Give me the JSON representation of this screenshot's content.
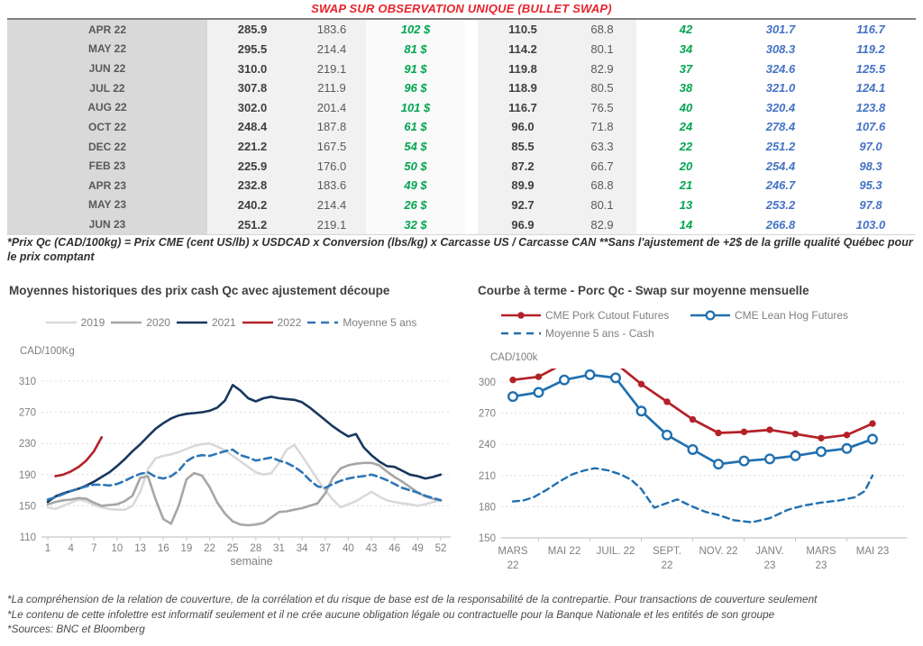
{
  "title": "SWAP SUR OBSERVATION UNIQUE (BULLET SWAP)",
  "colors": {
    "title_red": "#e8232b",
    "table_green": "#00a550",
    "table_blue": "#4472c4",
    "series_2019": "#d9d9d9",
    "series_2020": "#a6a6a6",
    "series_2021": "#17375e",
    "series_2022": "#b42128",
    "series_moyenne": "#2e75b6",
    "pork_cutout_red": "#b42128",
    "lean_hog_blue": "#2170b0"
  },
  "table": {
    "rows": [
      [
        "APR 22",
        "285.9",
        "183.6",
        "102 $",
        "110.5",
        "68.8",
        "42",
        "301.7",
        "116.7"
      ],
      [
        "MAY 22",
        "295.5",
        "214.4",
        "81 $",
        "114.2",
        "80.1",
        "34",
        "308.3",
        "119.2"
      ],
      [
        "JUN 22",
        "310.0",
        "219.1",
        "91 $",
        "119.8",
        "82.9",
        "37",
        "324.6",
        "125.5"
      ],
      [
        "JUL 22",
        "307.8",
        "211.9",
        "96 $",
        "118.9",
        "80.5",
        "38",
        "321.0",
        "124.1"
      ],
      [
        "AUG 22",
        "302.0",
        "201.4",
        "101 $",
        "116.7",
        "76.5",
        "40",
        "320.4",
        "123.8"
      ],
      [
        "OCT 22",
        "248.4",
        "187.8",
        "61 $",
        "96.0",
        "71.8",
        "24",
        "278.4",
        "107.6"
      ],
      [
        "DEC 22",
        "221.2",
        "167.5",
        "54 $",
        "85.5",
        "63.3",
        "22",
        "251.2",
        "97.0"
      ],
      [
        "FEB 23",
        "225.9",
        "176.0",
        "50 $",
        "87.2",
        "66.7",
        "20",
        "254.4",
        "98.3"
      ],
      [
        "APR 23",
        "232.8",
        "183.6",
        "49 $",
        "89.9",
        "68.8",
        "21",
        "246.7",
        "95.3"
      ],
      [
        "MAY 23",
        "240.2",
        "214.4",
        "26 $",
        "92.7",
        "80.1",
        "13",
        "253.2",
        "97.8"
      ],
      [
        "JUN 23",
        "251.2",
        "219.1",
        "32 $",
        "96.9",
        "82.9",
        "14",
        "266.8",
        "103.0"
      ]
    ]
  },
  "table_note": "*Prix Qc (CAD/100kg) = Prix CME (cent US/lb) x USDCAD x Conversion (lbs/kg) x Carcasse US / Carcasse CAN **Sans l'ajustement de +2$ de la grille qualité Québec pour le prix comptant",
  "chart_data": [
    {
      "type": "line",
      "title": "Moyennes historiques des prix cash Qc avec ajustement découpe",
      "ylabel": "CAD/100Kg",
      "xlabel": "semaine",
      "ylim": [
        110,
        310
      ],
      "yticks": [
        110,
        150,
        190,
        230,
        270,
        310
      ],
      "xticks": [
        1,
        4,
        7,
        10,
        13,
        16,
        19,
        22,
        25,
        28,
        31,
        34,
        37,
        40,
        43,
        46,
        49,
        52
      ],
      "x_range": [
        1,
        52
      ],
      "grid": "dashed-horizontal",
      "legend_position": "top-center",
      "series": [
        {
          "name": "2019",
          "color": "#d9d9d9",
          "dash": false,
          "values": [
            148,
            146,
            150,
            154,
            158,
            156,
            151,
            148,
            146,
            145,
            145,
            150,
            168,
            197,
            211,
            214,
            216,
            219,
            223,
            227,
            229,
            230,
            226,
            221,
            214,
            207,
            200,
            193,
            190,
            192,
            205,
            222,
            228,
            214,
            199,
            184,
            170,
            158,
            148,
            152,
            156,
            162,
            168,
            162,
            157,
            155,
            153,
            152,
            150,
            152,
            155,
            157
          ]
        },
        {
          "name": "2020",
          "color": "#a6a6a6",
          "dash": false,
          "values": [
            152,
            155,
            157,
            158,
            160,
            159,
            154,
            150,
            151,
            152,
            156,
            163,
            186,
            188,
            158,
            133,
            127,
            150,
            184,
            192,
            189,
            174,
            154,
            140,
            130,
            126,
            125,
            126,
            128,
            135,
            142,
            143,
            145,
            147,
            150,
            153,
            166,
            186,
            198,
            202,
            204,
            205,
            205,
            202,
            194,
            187,
            181,
            174,
            167,
            162,
            159,
            157
          ]
        },
        {
          "name": "2021",
          "color": "#17375e",
          "dash": false,
          "values": [
            155,
            162,
            166,
            169,
            172,
            176,
            181,
            187,
            193,
            201,
            210,
            220,
            229,
            239,
            249,
            256,
            262,
            266,
            268,
            269,
            270,
            272,
            276,
            285,
            305,
            298,
            288,
            284,
            288,
            290,
            288,
            287,
            286,
            283,
            276,
            268,
            260,
            252,
            245,
            239,
            242,
            225,
            215,
            207,
            201,
            200,
            195,
            190,
            188,
            185,
            187,
            190
          ]
        },
        {
          "name": "2022",
          "color": "#b42128",
          "dash": false,
          "values": [
            null,
            188,
            190,
            194,
            200,
            208,
            220,
            238,
            null,
            null,
            null,
            null,
            null,
            null,
            null,
            null,
            null,
            null,
            null,
            null,
            null,
            null,
            null,
            null,
            null,
            null,
            null,
            null,
            null,
            null,
            null,
            null,
            null,
            null,
            null,
            null,
            null,
            null,
            null,
            null,
            null,
            null,
            null,
            null,
            null,
            null,
            null,
            null,
            null,
            null,
            null,
            null
          ]
        },
        {
          "name": "Moyenne 5 ans",
          "color": "#2e75b6",
          "dash": true,
          "values": [
            158,
            161,
            165,
            169,
            172,
            175,
            177,
            177,
            176,
            178,
            182,
            187,
            191,
            193,
            187,
            185,
            188,
            195,
            207,
            213,
            215,
            214,
            217,
            220,
            222,
            215,
            212,
            208,
            210,
            212,
            208,
            205,
            200,
            193,
            183,
            175,
            173,
            178,
            182,
            185,
            187,
            188,
            190,
            187,
            183,
            178,
            173,
            170,
            167,
            163,
            160,
            157
          ]
        }
      ]
    },
    {
      "type": "line",
      "title": "Courbe à terme - Porc Qc - Swap sur moyenne mensuelle",
      "ylabel": "CAD/100k",
      "ylim": [
        150,
        300
      ],
      "yticks": [
        150,
        180,
        210,
        240,
        270,
        300
      ],
      "x_points": 15,
      "plot_clip_top": 313,
      "grid": "dashed-horizontal",
      "legend_position": "top-left",
      "xtick_labels": [
        {
          "i": 0,
          "lines": [
            "MARS",
            "22"
          ]
        },
        {
          "i": 2,
          "lines": [
            "MAI 22"
          ]
        },
        {
          "i": 4,
          "lines": [
            "JUIL. 22"
          ]
        },
        {
          "i": 6,
          "lines": [
            "SEPT.",
            "22"
          ]
        },
        {
          "i": 8,
          "lines": [
            "NOV. 22"
          ]
        },
        {
          "i": 10,
          "lines": [
            "JANV.",
            "23"
          ]
        },
        {
          "i": 12,
          "lines": [
            "MARS",
            "23"
          ]
        },
        {
          "i": 14,
          "lines": [
            "MAI 23"
          ]
        }
      ],
      "series": [
        {
          "name": "CME Pork Cutout Futures",
          "color": "#b42128",
          "dash": false,
          "marker": "filled-circle",
          "values": [
            302,
            305,
            318,
            322,
            318,
            298,
            281,
            264,
            251,
            252,
            254,
            250,
            246,
            249,
            260
          ]
        },
        {
          "name": "CME Lean Hog Futures",
          "color": "#2170b0",
          "dash": false,
          "marker": "open-circle",
          "values": [
            286,
            290,
            302,
            307,
            304,
            272,
            249,
            235,
            221,
            224,
            226,
            229,
            233,
            236,
            245
          ]
        },
        {
          "name": "Moyenne 5 ans - Cash",
          "color": "#2170b0",
          "dash": true,
          "marker": "none",
          "points": [
            [
              0,
              185
            ],
            [
              0.4,
              186
            ],
            [
              0.8,
              189
            ],
            [
              1.3,
              196
            ],
            [
              1.8,
              204
            ],
            [
              2.3,
              211
            ],
            [
              2.8,
              215
            ],
            [
              3.2,
              217
            ],
            [
              3.7,
              215
            ],
            [
              4.2,
              211
            ],
            [
              4.6,
              206
            ],
            [
              5,
              197
            ],
            [
              5.5,
              179
            ],
            [
              6.4,
              187
            ],
            [
              7,
              180
            ],
            [
              7.5,
              175
            ],
            [
              8,
              172
            ],
            [
              8.6,
              167
            ],
            [
              9.3,
              165
            ],
            [
              10,
              169
            ],
            [
              10.7,
              177
            ],
            [
              11.3,
              181
            ],
            [
              12,
              184
            ],
            [
              12.7,
              186
            ],
            [
              13.3,
              189
            ],
            [
              13.7,
              195
            ],
            [
              14,
              210
            ]
          ]
        }
      ]
    }
  ],
  "footer_notes": [
    "*La compréhension de la relation de couverture, de la corrélation et du risque de base est de la responsabilité de la contrepartie. Pour transactions de couverture seulement",
    "*Le contenu de cette infolettre est informatif seulement et il ne crée aucune obligation légale ou contractuelle pour la Banque Nationale et les entités de son groupe",
    "*Sources: BNC et Bloomberg"
  ]
}
